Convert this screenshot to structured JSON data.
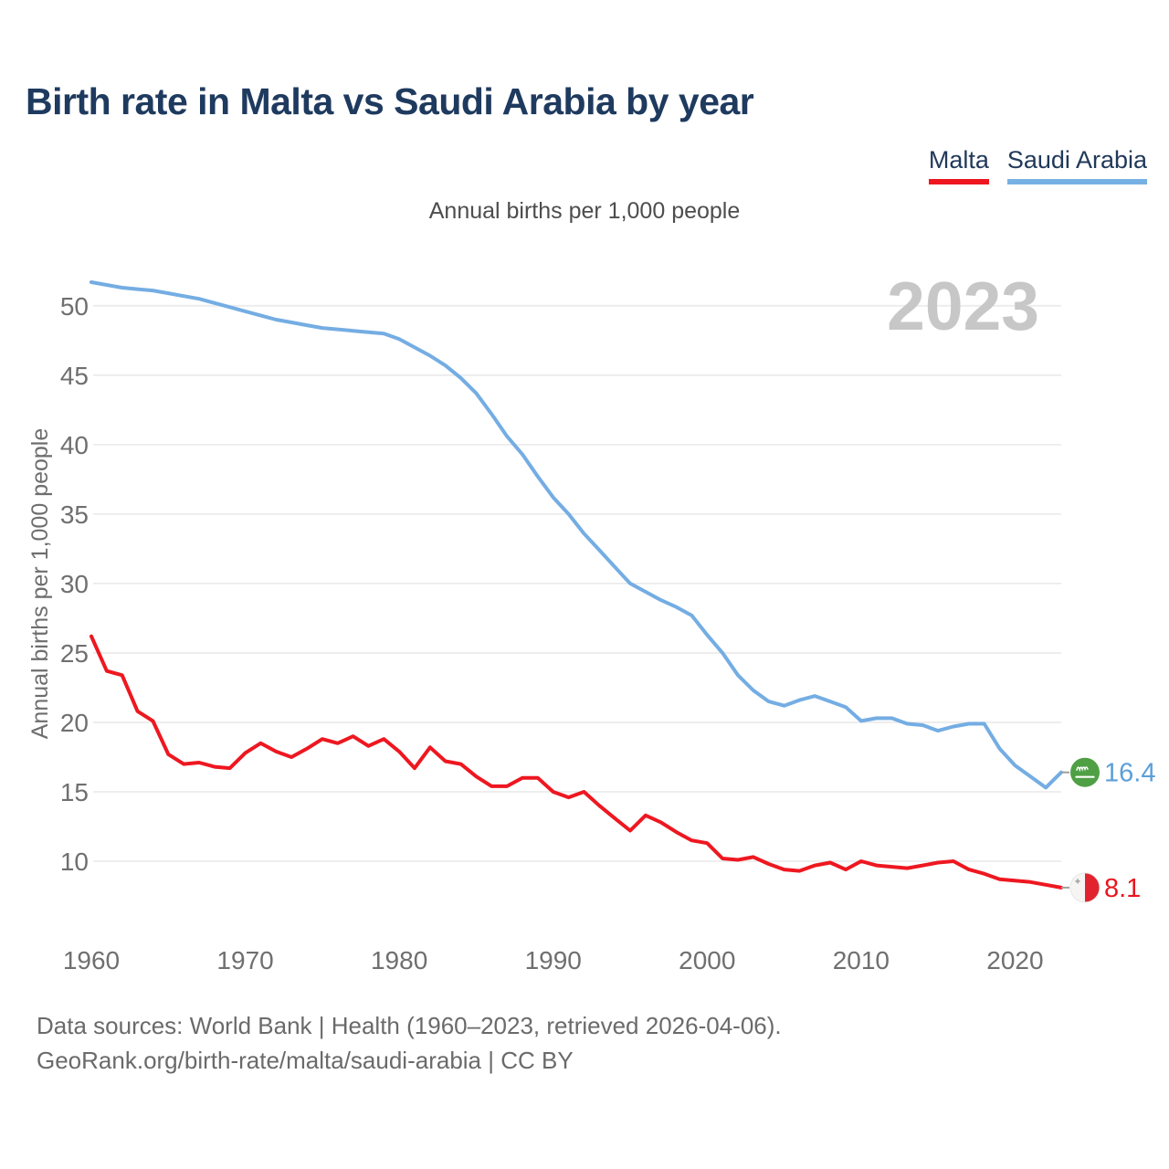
{
  "header": {
    "title": "Birth rate in Malta vs Saudi Arabia by year",
    "subtitle": "Annual births per 1,000 people"
  },
  "legend": [
    {
      "label": "Malta",
      "color": "#ee1720"
    },
    {
      "label": "Saudi Arabia",
      "color": "#77b1e3"
    }
  ],
  "watermark_year": "2023",
  "footer": {
    "line1": "Data sources: World Bank | Health (1960–2023, retrieved 2026-04-06).",
    "line2": "GeoRank.org/birth-rate/malta/saudi-arabia | CC BY"
  },
  "chart_data": {
    "type": "line",
    "title": "Birth rate in Malta vs Saudi Arabia by year",
    "ylabel": "Annual births per 1,000 people",
    "xlabel": "",
    "grid": "horizontal",
    "legend_position": "top-right",
    "ylim": [
      7,
      53
    ],
    "y_ticks": [
      10,
      15,
      20,
      25,
      30,
      35,
      40,
      45,
      50
    ],
    "x_ticks": [
      1960,
      1970,
      1980,
      1990,
      2000,
      2010,
      2020
    ],
    "years": [
      1960,
      1961,
      1962,
      1963,
      1964,
      1965,
      1966,
      1967,
      1968,
      1969,
      1970,
      1971,
      1972,
      1973,
      1974,
      1975,
      1976,
      1977,
      1978,
      1979,
      1980,
      1981,
      1982,
      1983,
      1984,
      1985,
      1986,
      1987,
      1988,
      1989,
      1990,
      1991,
      1992,
      1993,
      1994,
      1995,
      1996,
      1997,
      1998,
      1999,
      2000,
      2001,
      2002,
      2003,
      2004,
      2005,
      2006,
      2007,
      2008,
      2009,
      2010,
      2011,
      2012,
      2013,
      2014,
      2015,
      2016,
      2017,
      2018,
      2019,
      2020,
      2021,
      2022,
      2023
    ],
    "series": [
      {
        "name": "Malta",
        "color": "#ee1720",
        "label_color": "#e8161f",
        "end_label": "8.1",
        "flag": "malta-flag",
        "values": [
          26.2,
          23.7,
          23.4,
          20.8,
          20.1,
          17.7,
          17.0,
          17.1,
          16.8,
          16.7,
          17.8,
          18.5,
          17.9,
          17.5,
          18.1,
          18.8,
          18.5,
          19.0,
          18.3,
          18.8,
          17.9,
          16.7,
          18.2,
          17.2,
          17.0,
          16.1,
          15.4,
          15.4,
          16.0,
          16.0,
          15.0,
          14.6,
          15.0,
          14.0,
          13.1,
          12.2,
          13.3,
          12.8,
          12.1,
          11.5,
          11.3,
          10.2,
          10.1,
          10.3,
          9.8,
          9.4,
          9.3,
          9.7,
          9.9,
          9.4,
          10.0,
          9.7,
          9.6,
          9.5,
          9.7,
          9.9,
          10.0,
          9.4,
          9.1,
          8.7,
          8.6,
          8.5,
          8.3,
          8.1
        ]
      },
      {
        "name": "Saudi Arabia",
        "color": "#74ade3",
        "label_color": "#5b9fd8",
        "end_label": "16.4",
        "flag": "saudi-arabia-flag",
        "values": [
          51.7,
          51.5,
          51.3,
          51.2,
          51.1,
          50.9,
          50.7,
          50.5,
          50.2,
          49.9,
          49.6,
          49.3,
          49.0,
          48.8,
          48.6,
          48.4,
          48.3,
          48.2,
          48.1,
          48.0,
          47.6,
          47.0,
          46.4,
          45.7,
          44.8,
          43.7,
          42.2,
          40.6,
          39.3,
          37.7,
          36.2,
          35.0,
          33.6,
          32.4,
          31.2,
          30.0,
          29.4,
          28.8,
          28.3,
          27.7,
          26.3,
          25.0,
          23.4,
          22.3,
          21.5,
          21.2,
          21.6,
          21.9,
          21.5,
          21.1,
          20.1,
          20.3,
          20.3,
          19.9,
          19.8,
          19.4,
          19.7,
          19.9,
          19.9,
          18.1,
          16.9,
          16.1,
          15.3,
          16.4
        ]
      }
    ]
  }
}
